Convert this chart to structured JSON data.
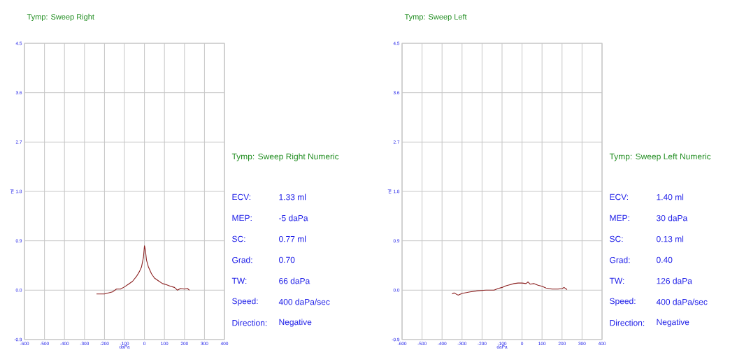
{
  "chart_data": [
    {
      "type": "line",
      "title": "Tymp: Sweep Right",
      "xlabel": "daPa",
      "ylabel": "ml",
      "xlim": [
        -600,
        400
      ],
      "xticks": [
        -600,
        -500,
        -400,
        -300,
        -200,
        -100,
        0,
        100,
        200,
        300,
        400
      ],
      "ylim": [
        -0.9,
        4.5
      ],
      "yticks": [
        -0.9,
        {
          "value": 0,
          "label": "0.0"
        },
        0.9,
        1.8,
        2.7,
        3.6,
        4.5
      ],
      "grid": true,
      "marker": "none",
      "line_style": "solid",
      "series": [
        {
          "color": "#8b2020",
          "x": [
            -240,
            -200,
            -180,
            -160,
            -140,
            -120,
            -100,
            -80,
            -60,
            -40,
            -25,
            -15,
            -5,
            0,
            5,
            10,
            20,
            35,
            50,
            70,
            90,
            110,
            130,
            150,
            165,
            180,
            200,
            215,
            225
          ],
          "values": [
            -0.07,
            -0.07,
            -0.05,
            -0.03,
            0.02,
            0.02,
            0.06,
            0.11,
            0.16,
            0.25,
            0.34,
            0.42,
            0.6,
            0.81,
            0.72,
            0.55,
            0.42,
            0.3,
            0.22,
            0.17,
            0.12,
            0.1,
            0.07,
            0.05,
            0.0,
            0.03,
            0.02,
            0.03,
            0.0
          ]
        }
      ]
    },
    {
      "type": "other",
      "title": "Tymp: Sweep Right Numeric",
      "annotations": [
        "ECV:",
        "1.33 ml",
        "MEP:",
        "-5 daPa",
        "SC:",
        "0.77 ml",
        "Grad:",
        "0.70",
        "TW:",
        "66 daPa",
        "Speed:",
        "400 daPa/sec",
        "Direction:",
        "Negative"
      ]
    },
    {
      "type": "line",
      "title": "Tymp: Sweep Left",
      "xlabel": "daPa",
      "ylabel": "ml",
      "xlim": [
        -600,
        400
      ],
      "xticks": [
        -600,
        -500,
        -400,
        -300,
        -200,
        -100,
        0,
        100,
        200,
        300,
        400
      ],
      "ylim": [
        -0.9,
        4.5
      ],
      "yticks": [
        -0.9,
        {
          "value": 0,
          "label": "0.0"
        },
        0.9,
        1.8,
        2.7,
        3.6,
        4.5
      ],
      "grid": true,
      "marker": "none",
      "line_style": "solid",
      "series": [
        {
          "color": "#8b2020",
          "x": [
            -350,
            -340,
            -320,
            -300,
            -260,
            -220,
            -180,
            -140,
            -120,
            -100,
            -80,
            -60,
            -40,
            -20,
            0,
            20,
            30,
            40,
            60,
            80,
            100,
            120,
            150,
            180,
            200,
            210,
            225
          ],
          "values": [
            -0.07,
            -0.05,
            -0.09,
            -0.06,
            -0.03,
            -0.01,
            0.0,
            0.0,
            0.03,
            0.05,
            0.08,
            0.1,
            0.12,
            0.13,
            0.13,
            0.12,
            0.15,
            0.11,
            0.12,
            0.09,
            0.07,
            0.04,
            0.02,
            0.02,
            0.03,
            0.05,
            0.01
          ]
        }
      ]
    },
    {
      "type": "other",
      "title": "Tymp: Sweep Left Numeric",
      "annotations": [
        "ECV:",
        "1.40 ml",
        "MEP:",
        "30 daPa",
        "SC:",
        "0.13 ml",
        "Grad:",
        "0.40",
        "TW:",
        "126 daPa",
        "Speed:",
        "400 daPa/sec",
        "Direction:",
        "Negative"
      ]
    }
  ]
}
